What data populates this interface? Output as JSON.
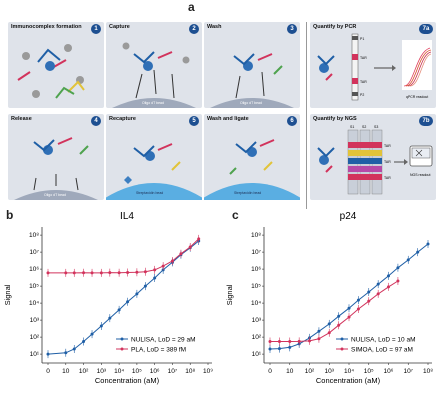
{
  "labels": {
    "a": "a",
    "b": "b",
    "c": "c"
  },
  "panels": [
    {
      "title": "Immunocomplex formation",
      "num": "1"
    },
    {
      "title": "Capture",
      "num": "2"
    },
    {
      "title": "Wash",
      "num": "3"
    },
    {
      "title": "Quantify by PCR",
      "num": "7a"
    },
    {
      "title": "Release",
      "num": "4"
    },
    {
      "title": "Recapture",
      "num": "5"
    },
    {
      "title": "Wash and ligate",
      "num": "6"
    },
    {
      "title": "Quantify by NGS",
      "num": "7b"
    }
  ],
  "bead_labels": {
    "oligo_dt": "Oligo dT bead",
    "streptavidin": "Streptavidin bead"
  },
  "pcr": {
    "readout": "qPCR readout",
    "tags": [
      "P1",
      "TAR",
      "TAR",
      "P2"
    ]
  },
  "ngs": {
    "readout": "NGS readout",
    "cols": [
      "S1",
      "S2",
      "S3"
    ],
    "tags": [
      "TAR",
      "TAR",
      "TAR"
    ]
  },
  "colors": {
    "blue": "#1f5fa6",
    "red": "#d2335c",
    "panel_bg": "#dfe3ea",
    "badge": "#1d4f91"
  },
  "chart_data": [
    {
      "type": "line",
      "title": "IL4",
      "xlabel": "Concentration (aM)",
      "ylabel": "Signal",
      "x_scale": "log",
      "y_scale": "log",
      "xticks": [
        "0",
        "10",
        "10²",
        "10³",
        "10⁴",
        "10⁵",
        "10⁶",
        "10⁷",
        "10⁸",
        "10⁹"
      ],
      "yticks": [
        "10¹",
        "10²",
        "10³",
        "10⁴",
        "10⁵",
        "10⁶",
        "10⁷",
        "10⁸"
      ],
      "ylim": [
        3,
        300000000
      ],
      "legend_placement": "bottom-right",
      "series": [
        {
          "name": "NULISA, LoD = 29 aM",
          "color": "#1f5fa6",
          "x": [
            0,
            10,
            30,
            100,
            300,
            1000,
            3000,
            10000,
            30000,
            100000,
            300000,
            1000000,
            3000000,
            10000000,
            30000000,
            100000000,
            300000000
          ],
          "y": [
            10,
            12,
            20,
            55,
            150,
            450,
            1300,
            4000,
            12000,
            35000,
            100000,
            300000,
            900000,
            2500000,
            7000000,
            18000000,
            45000000
          ]
        },
        {
          "name": "PLA, LoD = 389 fM",
          "color": "#d2335c",
          "x": [
            0,
            10,
            30,
            100,
            300,
            1000,
            3000,
            10000,
            30000,
            100000,
            300000,
            1000000,
            3000000,
            10000000,
            30000000,
            100000000,
            300000000
          ],
          "y": [
            600000,
            600000,
            600000,
            610000,
            600000,
            600000,
            620000,
            610000,
            630000,
            650000,
            700000,
            900000,
            1500000,
            3000000,
            8000000,
            20000000,
            60000000
          ]
        }
      ]
    },
    {
      "type": "line",
      "title": "p24",
      "xlabel": "Concentration (aM)",
      "ylabel": "Signal",
      "x_scale": "log",
      "y_scale": "log",
      "xticks": [
        "0",
        "10",
        "10²",
        "10³",
        "10⁴",
        "10⁵",
        "10⁶",
        "10⁷",
        "10⁸"
      ],
      "yticks": [
        "10¹",
        "10²",
        "10³",
        "10⁴",
        "10⁵",
        "10⁶",
        "10⁷",
        "10⁸"
      ],
      "ylim": [
        3,
        300000000
      ],
      "legend_placement": "bottom-right",
      "series": [
        {
          "name": "NULISA, LoD = 10 aM",
          "color": "#1f5fa6",
          "x": [
            0,
            3,
            10,
            30,
            100,
            300,
            1000,
            3000,
            10000,
            30000,
            100000,
            300000,
            1000000,
            3000000,
            10000000,
            30000000,
            100000000
          ],
          "y": [
            20,
            21,
            25,
            40,
            90,
            220,
            600,
            1700,
            5000,
            15000,
            45000,
            130000,
            400000,
            1200000,
            3500000,
            10000000,
            30000000
          ]
        },
        {
          "name": "SIMOA, LoD = 97 aM",
          "color": "#d2335c",
          "x": [
            0,
            3,
            10,
            30,
            100,
            300,
            1000,
            3000,
            10000,
            30000,
            100000,
            300000,
            1000000,
            3000000
          ],
          "y": [
            55,
            55,
            55,
            56,
            60,
            80,
            180,
            500,
            1500,
            4500,
            13000,
            35000,
            90000,
            200000
          ]
        }
      ]
    }
  ]
}
